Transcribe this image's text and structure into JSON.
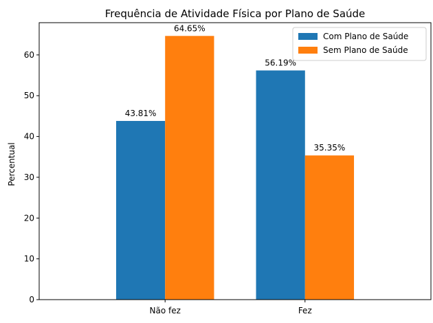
{
  "chart_data": {
    "type": "bar",
    "title": "Frequência de Atividade Física por Plano de Saúde",
    "xlabel": "",
    "ylabel": "Percentual",
    "categories": [
      "Não fez",
      "Fez"
    ],
    "series": [
      {
        "name": "Com Plano de Saúde",
        "color": "#1f77b4",
        "values": [
          43.81,
          56.19
        ],
        "labels": [
          "43.81%",
          "56.19%"
        ]
      },
      {
        "name": "Sem Plano de Saúde",
        "color": "#ff7f0e",
        "values": [
          64.65,
          35.35
        ],
        "labels": [
          "64.65%",
          "35.35%"
        ]
      }
    ],
    "ylim": [
      0,
      67.9
    ],
    "yticks": [
      0,
      10,
      20,
      30,
      40,
      50,
      60
    ],
    "grid": false,
    "legend_position": "top-right"
  }
}
